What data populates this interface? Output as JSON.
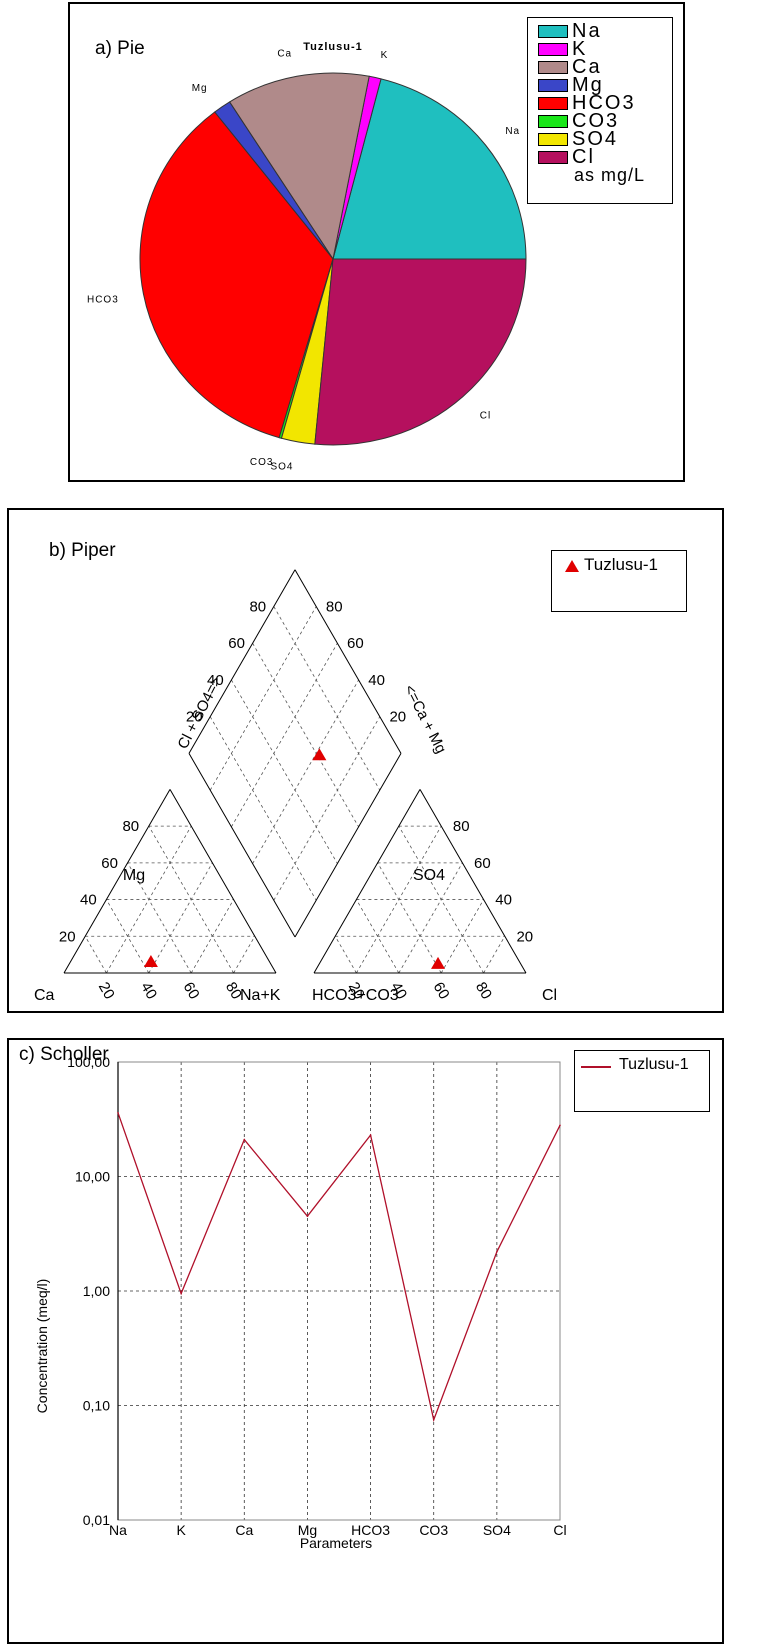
{
  "panels": {
    "pie_label": "a) Pie",
    "piper_label": "b) Piper",
    "scholler_label": "c) Scholler"
  },
  "chart_data": [
    {
      "type": "pie",
      "title": "Tuzlusu-1",
      "legend_note": "as mg/L",
      "legend_placement": "top-right",
      "slices": [
        {
          "label": "Na",
          "value": 21,
          "color": "#1fbfbf"
        },
        {
          "label": "K",
          "value": 1,
          "color": "#ff00ff"
        },
        {
          "label": "Ca",
          "value": 12,
          "color": "#b08a8a"
        },
        {
          "label": "Mg",
          "value": 1.5,
          "color": "#3a46c8"
        },
        {
          "label": "HCO3",
          "value": 35,
          "color": "#ff0000"
        },
        {
          "label": "CO3",
          "value": 0.2,
          "color": "#19e619"
        },
        {
          "label": "SO4",
          "value": 2.8,
          "color": "#f2e600"
        },
        {
          "label": "Cl",
          "value": 26.5,
          "color": "#b5105e"
        }
      ]
    },
    {
      "type": "scatter",
      "subtype": "piper",
      "legend": [
        "Tuzlusu-1"
      ],
      "marker_color": "#e00000",
      "tick_labels": [
        "20",
        "40",
        "60",
        "80"
      ],
      "corner_labels": {
        "cation_top": "Mg",
        "cation_left": "Ca",
        "cation_right": "Na+K",
        "anion_top": "SO4",
        "anion_left": "HCO3+CO3",
        "anion_right": "Cl",
        "diamond_left_axis": "Cl + SO4=>",
        "diamond_right_axis": "<=Ca + Mg"
      },
      "points": {
        "cation": {
          "Mg": 6,
          "NaK": 38,
          "Ca": 56
        },
        "anion": {
          "SO4": 5,
          "Cl": 56,
          "HCO3CO3": 39
        },
        "diamond": {
          "ClSO4": 61,
          "CaMg": 62
        }
      }
    },
    {
      "type": "line",
      "xlabel": "Parameters",
      "ylabel": "Concentration (meq/l)",
      "yscale": "log",
      "ylim": [
        0.01,
        100
      ],
      "yticks": [
        "0,01",
        "0,10",
        "1,00",
        "10,00",
        "100,00"
      ],
      "grid": true,
      "legend_placement": "top-right",
      "categories": [
        "Na",
        "K",
        "Ca",
        "Mg",
        "HCO3",
        "CO3",
        "SO4",
        "Cl"
      ],
      "series": [
        {
          "name": "Tuzlusu-1",
          "color": "#b0102a",
          "values": [
            36,
            0.95,
            21,
            4.5,
            23,
            0.075,
            2.2,
            28
          ]
        }
      ]
    }
  ]
}
